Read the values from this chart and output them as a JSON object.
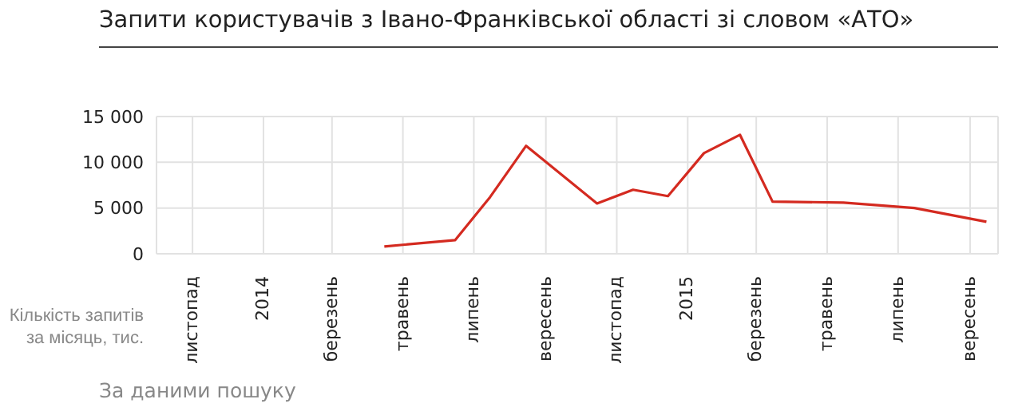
{
  "chart_data": {
    "type": "line",
    "title": "Запити користувачів з Івано-Франківської області зі словом «АТО»",
    "ylabel": "Кількість запитів за місяць, тис.",
    "annotations": [
      "За даними пошуку"
    ],
    "x": [
      "2014-04-15",
      "2014-06-15",
      "2014-07-15",
      "2014-08-15",
      "2014-10-15",
      "2014-11-15",
      "2014-12-15",
      "2015-01-15",
      "2015-02-15",
      "2015-03-15",
      "2015-05-15",
      "2015-07-15",
      "2015-09-15"
    ],
    "series": [
      {
        "color": "#d42a20",
        "values": [
          800,
          1500,
          6200,
          11800,
          5500,
          7000,
          6300,
          11000,
          13000,
          5700,
          5600,
          5000,
          3500
        ]
      }
    ],
    "xlim": [
      "2013-10-01",
      "2015-09-25"
    ],
    "xticks": [
      {
        "value": "2013-11-01",
        "label": "листопад"
      },
      {
        "value": "2014-01-01",
        "label": "2014"
      },
      {
        "value": "2014-03-01",
        "label": "березень"
      },
      {
        "value": "2014-05-01",
        "label": "травень"
      },
      {
        "value": "2014-07-01",
        "label": "липень"
      },
      {
        "value": "2014-09-01",
        "label": "вересень"
      },
      {
        "value": "2014-11-01",
        "label": "листопад"
      },
      {
        "value": "2015-01-01",
        "label": "2015"
      },
      {
        "value": "2015-03-01",
        "label": "березень"
      },
      {
        "value": "2015-05-01",
        "label": "травень"
      },
      {
        "value": "2015-07-01",
        "label": "липень"
      },
      {
        "value": "2015-09-01",
        "label": "вересень"
      }
    ],
    "ylim": [
      0,
      15000
    ],
    "yticks": [
      0,
      {
        "value": 5000,
        "label": "5 000"
      },
      {
        "value": 10000,
        "label": "10 000"
      },
      {
        "value": 15000,
        "label": "15 000"
      }
    ],
    "grid": true,
    "marker": "none",
    "line_style": "solid"
  }
}
